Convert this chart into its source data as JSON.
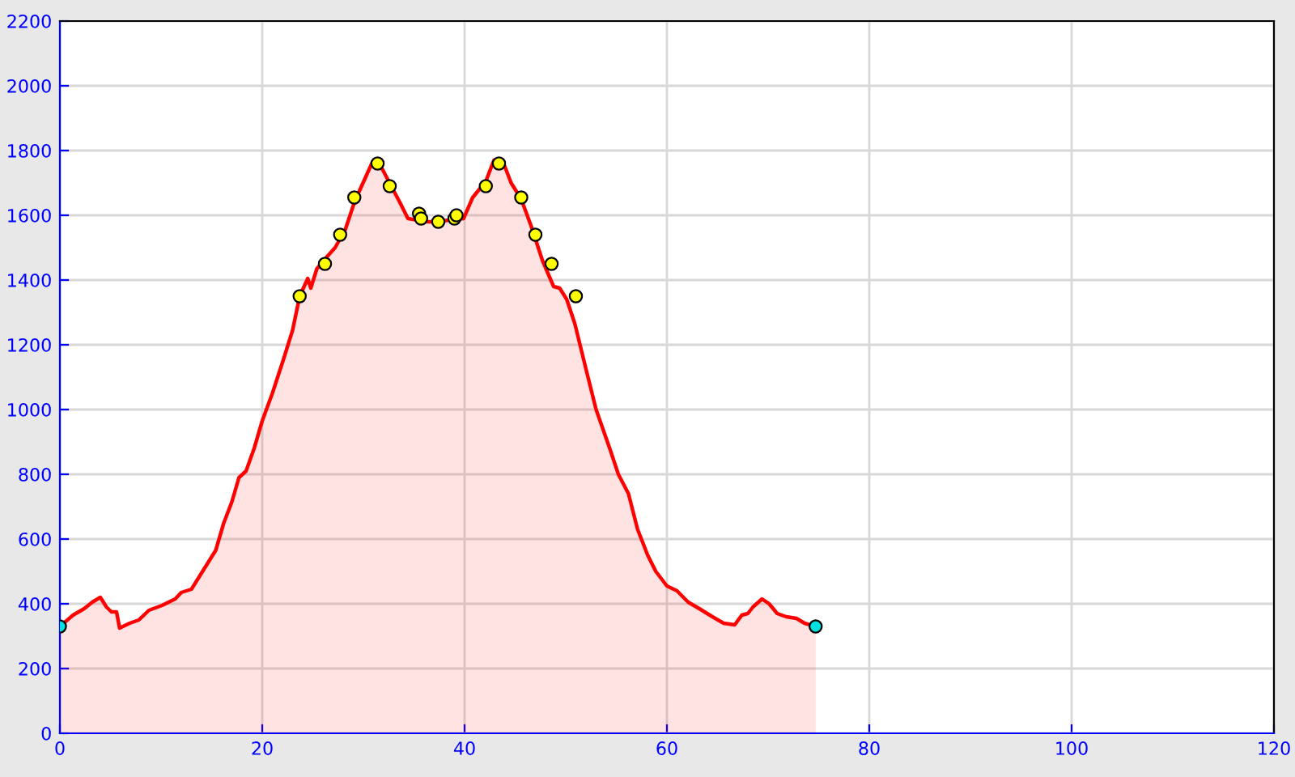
{
  "chart_data": {
    "type": "area",
    "xlim": [
      0,
      120
    ],
    "xticks": [
      0,
      20,
      40,
      60,
      80,
      100,
      120
    ],
    "ylim": [
      0,
      2200
    ],
    "yticks": [
      0,
      200,
      400,
      600,
      800,
      1000,
      1200,
      1400,
      1600,
      1800,
      2000,
      2200
    ],
    "grid": true,
    "legend": false,
    "series": [
      {
        "color": "#ff0000",
        "marker": "none",
        "x": [
          0,
          1.3,
          2.4,
          3.2,
          4,
          4.6,
          5.1,
          5.6,
          5.9,
          6.9,
          7.8,
          8.8,
          10.1,
          11.4,
          12,
          13,
          13.6,
          14.4,
          15.4,
          16.2,
          17,
          17.7,
          18.4,
          19.2,
          20,
          21,
          22.1,
          23,
          23.7,
          24.5,
          24.8,
          25.4,
          26.2,
          27.2,
          28.2,
          29,
          29.6,
          30.9,
          31.5,
          32.5,
          33.6,
          34.4,
          35.4,
          36.4,
          37.3,
          38.4,
          39.9,
          40.8,
          42.1,
          42.9,
          43.8,
          44.6,
          45.6,
          46.6,
          47.7,
          48.8,
          49.4,
          50.1,
          50.9,
          52,
          53,
          54.4,
          55.2,
          56.2,
          57.1,
          58.1,
          58.9,
          60,
          61,
          62.1,
          63.2,
          64.5,
          65.6,
          66.7,
          67.4,
          68,
          68.5,
          69.4,
          70.1,
          70.9,
          71.8,
          72.8,
          73.6,
          74.7
        ],
        "values": [
          330,
          365,
          385,
          405,
          420,
          390,
          375,
          375,
          325,
          340,
          350,
          380,
          395,
          415,
          435,
          445,
          475,
          515,
          565,
          650,
          715,
          790,
          810,
          880,
          965,
          1050,
          1155,
          1245,
          1350,
          1405,
          1375,
          1435,
          1465,
          1500,
          1555,
          1630,
          1675,
          1765,
          1765,
          1705,
          1640,
          1590,
          1585,
          1580,
          1580,
          1585,
          1590,
          1655,
          1705,
          1770,
          1765,
          1700,
          1650,
          1565,
          1460,
          1380,
          1375,
          1340,
          1265,
          1125,
          1000,
          875,
          800,
          740,
          630,
          550,
          500,
          455,
          440,
          405,
          385,
          360,
          340,
          335,
          365,
          370,
          390,
          415,
          400,
          370,
          360,
          355,
          340,
          330
        ]
      },
      {
        "type": "scatter",
        "color": "#ffff00",
        "marker": "circle",
        "x": [
          23.7,
          26.2,
          27.7,
          29.1,
          31.4,
          32.6,
          35.5,
          35.7,
          37.4,
          39,
          39.2,
          42.1,
          43.4,
          45.6,
          47,
          48.6,
          51
        ],
        "values": [
          1350,
          1450,
          1540,
          1655,
          1760,
          1690,
          1605,
          1590,
          1580,
          1590,
          1600,
          1690,
          1760,
          1655,
          1540,
          1450,
          1350
        ]
      },
      {
        "type": "scatter",
        "color": "#00e0e0",
        "marker": "circle",
        "x": [
          0,
          74.7
        ],
        "values": [
          330,
          330
        ]
      }
    ]
  }
}
